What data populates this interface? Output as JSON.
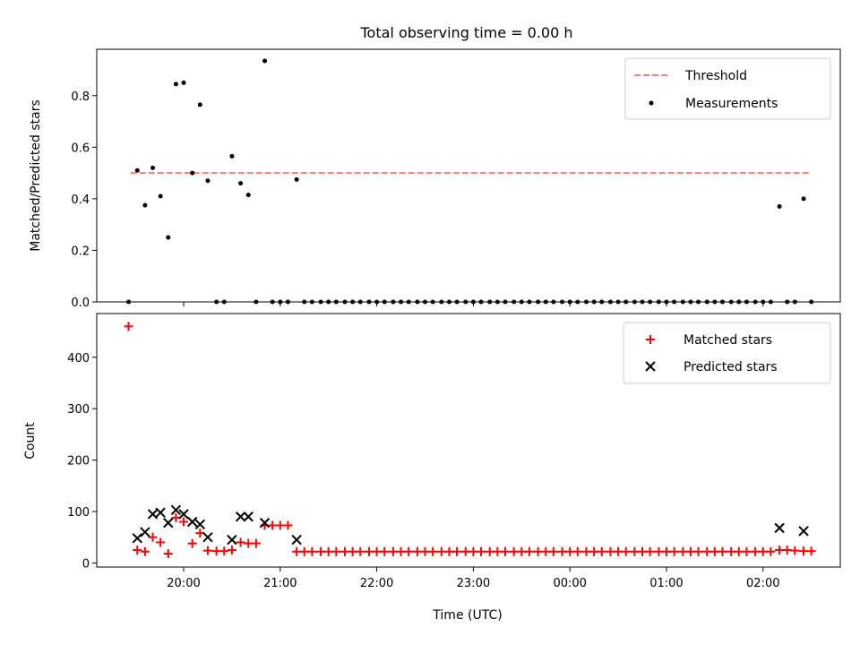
{
  "chart_data": [
    {
      "type": "scatter",
      "title": "Total observing time = 0.00 h",
      "xlabel": "",
      "ylabel": "Matched/Predicted stars",
      "xlim": [
        19.1,
        26.8
      ],
      "ylim": [
        0,
        0.98
      ],
      "x_ticks": [
        20,
        21,
        22,
        23,
        24,
        25,
        26
      ],
      "y_ticks": [
        0.0,
        0.2,
        0.4,
        0.6,
        0.8
      ],
      "y_tick_labels": [
        "0.0",
        "0.2",
        "0.4",
        "0.6",
        "0.8"
      ],
      "legend": "top-right",
      "series": [
        {
          "name": "Threshold",
          "style": "dashed-line",
          "color": "#f08080",
          "x": [
            19.45,
            26.5
          ],
          "y": [
            0.5,
            0.5
          ]
        },
        {
          "name": "Measurements",
          "style": "dot",
          "color": "#000000",
          "x": [
            19.43,
            19.52,
            19.6,
            19.68,
            19.76,
            19.84,
            19.92,
            20.0,
            20.09,
            20.17,
            20.25,
            20.34,
            20.42,
            20.5,
            20.59,
            20.67,
            20.75,
            20.84,
            20.92,
            21.0,
            21.08,
            21.17,
            21.25,
            21.33,
            21.42,
            21.5,
            21.58,
            21.67,
            21.75,
            21.83,
            21.92,
            22.0,
            22.08,
            22.17,
            22.25,
            22.33,
            22.42,
            22.5,
            22.58,
            22.67,
            22.75,
            22.83,
            22.92,
            23.0,
            23.08,
            23.17,
            23.25,
            23.33,
            23.42,
            23.5,
            23.58,
            23.67,
            23.75,
            23.83,
            23.92,
            24.0,
            24.08,
            24.17,
            24.25,
            24.33,
            24.42,
            24.5,
            24.58,
            24.67,
            24.75,
            24.83,
            24.92,
            25.0,
            25.08,
            25.17,
            25.25,
            25.33,
            25.42,
            25.5,
            25.58,
            25.67,
            25.75,
            25.83,
            25.92,
            26.0,
            26.08,
            26.17,
            26.25,
            26.33,
            26.42,
            26.5
          ],
          "y": [
            0.0,
            0.51,
            0.375,
            0.52,
            0.41,
            0.25,
            0.845,
            0.85,
            0.5,
            0.765,
            0.47,
            0.0,
            0.0,
            0.565,
            0.46,
            0.415,
            0.0,
            0.935,
            0.0,
            0.0,
            0.0,
            0.475,
            0.0,
            0.0,
            0.0,
            0.0,
            0.0,
            0.0,
            0.0,
            0.0,
            0.0,
            0.0,
            0.0,
            0.0,
            0.0,
            0.0,
            0.0,
            0.0,
            0.0,
            0.0,
            0.0,
            0.0,
            0.0,
            0.0,
            0.0,
            0.0,
            0.0,
            0.0,
            0.0,
            0.0,
            0.0,
            0.0,
            0.0,
            0.0,
            0.0,
            0.0,
            0.0,
            0.0,
            0.0,
            0.0,
            0.0,
            0.0,
            0.0,
            0.0,
            0.0,
            0.0,
            0.0,
            0.0,
            0.0,
            0.0,
            0.0,
            0.0,
            0.0,
            0.0,
            0.0,
            0.0,
            0.0,
            0.0,
            0.0,
            0.0,
            0.0,
            0.37,
            0.0,
            0.0,
            0.4,
            0.0
          ]
        }
      ]
    },
    {
      "type": "scatter",
      "title": "",
      "xlabel": "Time (UTC)",
      "ylabel": "Count",
      "xlim": [
        19.1,
        26.8
      ],
      "ylim": [
        -8,
        485
      ],
      "x_ticks": [
        20,
        21,
        22,
        23,
        24,
        25,
        26
      ],
      "x_tick_labels": [
        "20:00",
        "21:00",
        "22:00",
        "23:00",
        "00:00",
        "01:00",
        "02:00"
      ],
      "y_ticks": [
        0,
        100,
        200,
        300,
        400
      ],
      "y_tick_labels": [
        "0",
        "100",
        "200",
        "300",
        "400"
      ],
      "legend": "top-right",
      "series": [
        {
          "name": "Matched stars",
          "style": "plus",
          "color": "#ff0000",
          "x": [
            19.43,
            19.52,
            19.6,
            19.68,
            19.76,
            19.84,
            19.92,
            20.0,
            20.09,
            20.17,
            20.25,
            20.34,
            20.42,
            20.5,
            20.59,
            20.67,
            20.75,
            20.84,
            20.92,
            21.0,
            21.08,
            21.17,
            21.25,
            21.33,
            21.42,
            21.5,
            21.58,
            21.67,
            21.75,
            21.83,
            21.92,
            22.0,
            22.08,
            22.17,
            22.25,
            22.33,
            22.42,
            22.5,
            22.58,
            22.67,
            22.75,
            22.83,
            22.92,
            23.0,
            23.08,
            23.17,
            23.25,
            23.33,
            23.42,
            23.5,
            23.58,
            23.67,
            23.75,
            23.83,
            23.92,
            24.0,
            24.08,
            24.17,
            24.25,
            24.33,
            24.42,
            24.5,
            24.58,
            24.67,
            24.75,
            24.83,
            24.92,
            25.0,
            25.08,
            25.17,
            25.25,
            25.33,
            25.42,
            25.5,
            25.58,
            25.67,
            25.75,
            25.83,
            25.92,
            26.0,
            26.08,
            26.17,
            26.25,
            26.33,
            26.42,
            26.5
          ],
          "y": [
            460,
            25,
            22,
            50,
            40,
            18,
            88,
            80,
            38,
            58,
            24,
            23,
            23,
            25,
            40,
            38,
            38,
            73,
            73,
            73,
            73,
            22,
            22,
            22,
            22,
            22,
            22,
            22,
            22,
            22,
            22,
            22,
            22,
            22,
            22,
            22,
            22,
            22,
            22,
            22,
            22,
            22,
            22,
            22,
            22,
            22,
            22,
            22,
            22,
            22,
            22,
            22,
            22,
            22,
            22,
            22,
            22,
            22,
            22,
            22,
            22,
            22,
            22,
            22,
            22,
            22,
            22,
            22,
            22,
            22,
            22,
            22,
            22,
            22,
            22,
            22,
            22,
            22,
            22,
            22,
            22,
            25,
            25,
            24,
            23,
            23
          ]
        },
        {
          "name": "Predicted stars",
          "style": "x",
          "color": "#000000",
          "x": [
            19.52,
            19.6,
            19.68,
            19.76,
            19.84,
            19.92,
            20.0,
            20.09,
            20.17,
            20.25,
            20.5,
            20.59,
            20.67,
            20.84,
            21.17,
            26.17,
            26.42
          ],
          "y": [
            48,
            60,
            95,
            98,
            78,
            103,
            95,
            80,
            75,
            50,
            45,
            90,
            90,
            78,
            45,
            68,
            62
          ]
        }
      ]
    }
  ]
}
